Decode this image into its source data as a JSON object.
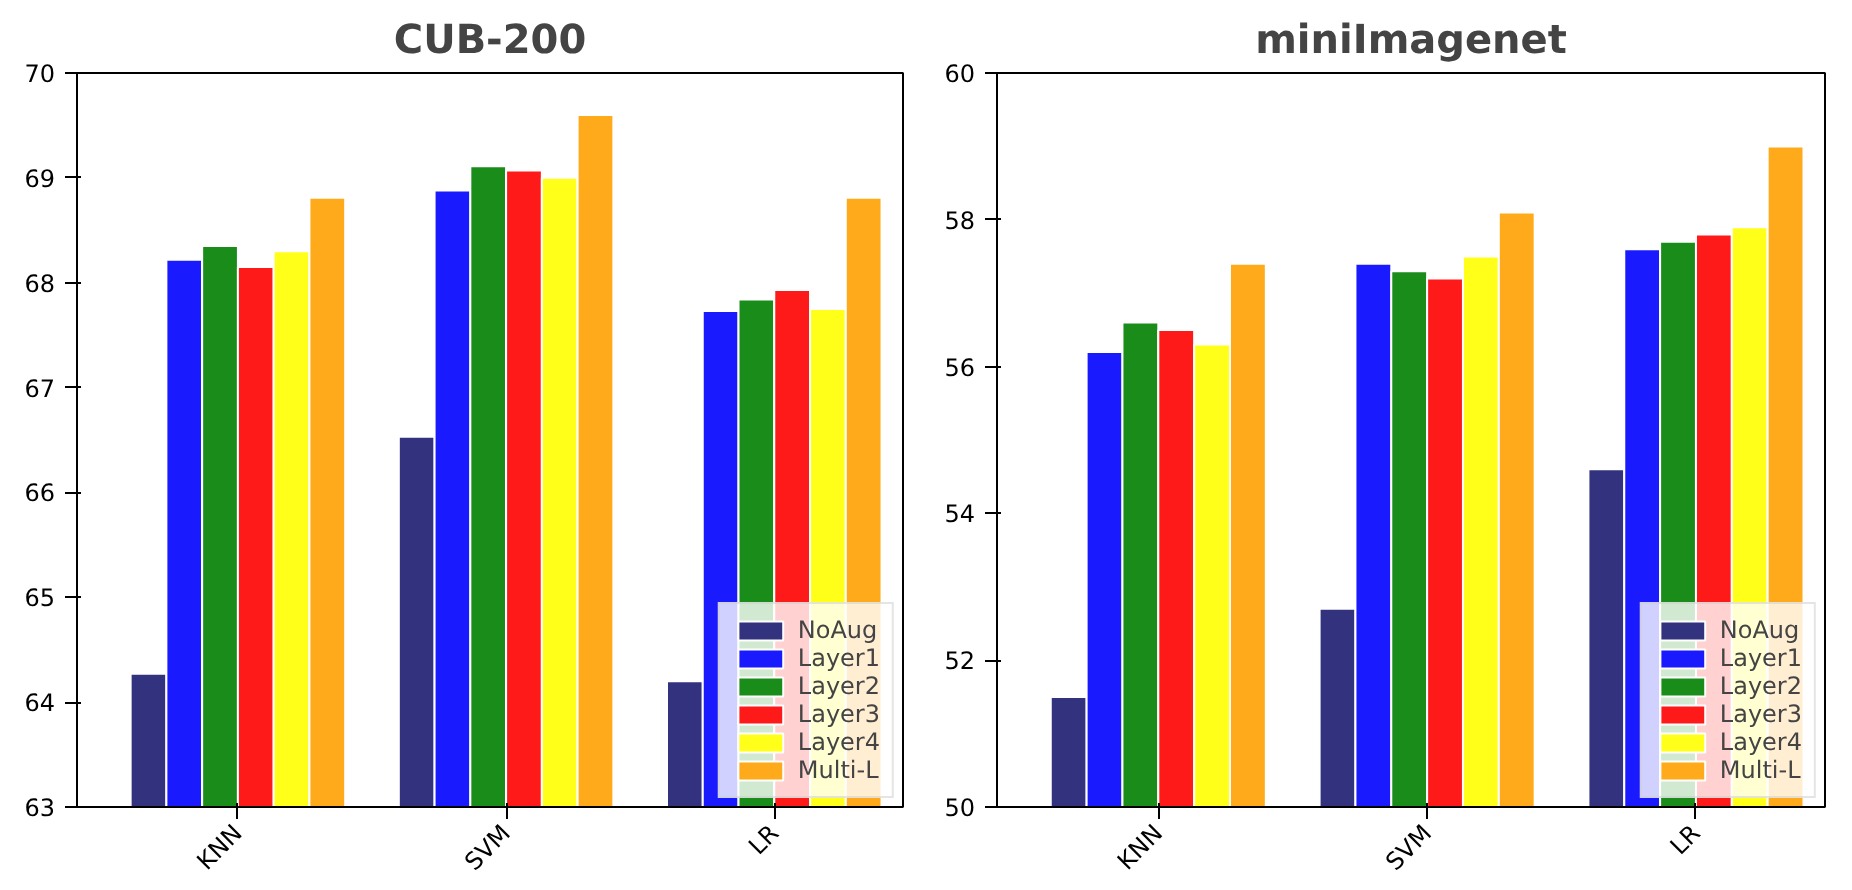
{
  "chart_data": [
    {
      "type": "bar",
      "title": "CUB-200",
      "categories": [
        "KNN",
        "SVM",
        "LR"
      ],
      "ylim": [
        63,
        70
      ],
      "yticks": [
        63,
        64,
        65,
        66,
        67,
        68,
        69,
        70
      ],
      "grid": false,
      "legend": "bottom right",
      "series": [
        {
          "name": "NoAug",
          "color": "#32327f",
          "values": [
            64.27,
            66.53,
            64.2
          ]
        },
        {
          "name": "Layer1",
          "color": "#1a1aff",
          "values": [
            68.22,
            68.88,
            67.73
          ]
        },
        {
          "name": "Layer2",
          "color": "#1a8c1a",
          "values": [
            68.35,
            69.11,
            67.84
          ]
        },
        {
          "name": "Layer3",
          "color": "#ff1a1a",
          "values": [
            68.15,
            69.07,
            67.93
          ]
        },
        {
          "name": "Layer4",
          "color": "#ffff1a",
          "values": [
            68.3,
            69.0,
            67.75
          ]
        },
        {
          "name": "Multi-L",
          "color": "#ffaa1a",
          "values": [
            68.81,
            69.6,
            68.81
          ]
        }
      ]
    },
    {
      "type": "bar",
      "title": "miniImagenet",
      "categories": [
        "KNN",
        "SVM",
        "LR"
      ],
      "ylim": [
        50,
        60
      ],
      "yticks": [
        50,
        52,
        54,
        56,
        58,
        60
      ],
      "grid": false,
      "legend": "bottom right",
      "series": [
        {
          "name": "NoAug",
          "color": "#32327f",
          "values": [
            51.5,
            52.7,
            54.6
          ]
        },
        {
          "name": "Layer1",
          "color": "#1a1aff",
          "values": [
            56.2,
            57.4,
            57.6
          ]
        },
        {
          "name": "Layer2",
          "color": "#1a8c1a",
          "values": [
            56.6,
            57.3,
            57.7
          ]
        },
        {
          "name": "Layer3",
          "color": "#ff1a1a",
          "values": [
            56.5,
            57.2,
            57.8
          ]
        },
        {
          "name": "Layer4",
          "color": "#ffff1a",
          "values": [
            56.3,
            57.5,
            57.9
          ]
        },
        {
          "name": "Multi-L",
          "color": "#ffaa1a",
          "values": [
            57.4,
            58.1,
            59.0
          ]
        }
      ]
    }
  ]
}
